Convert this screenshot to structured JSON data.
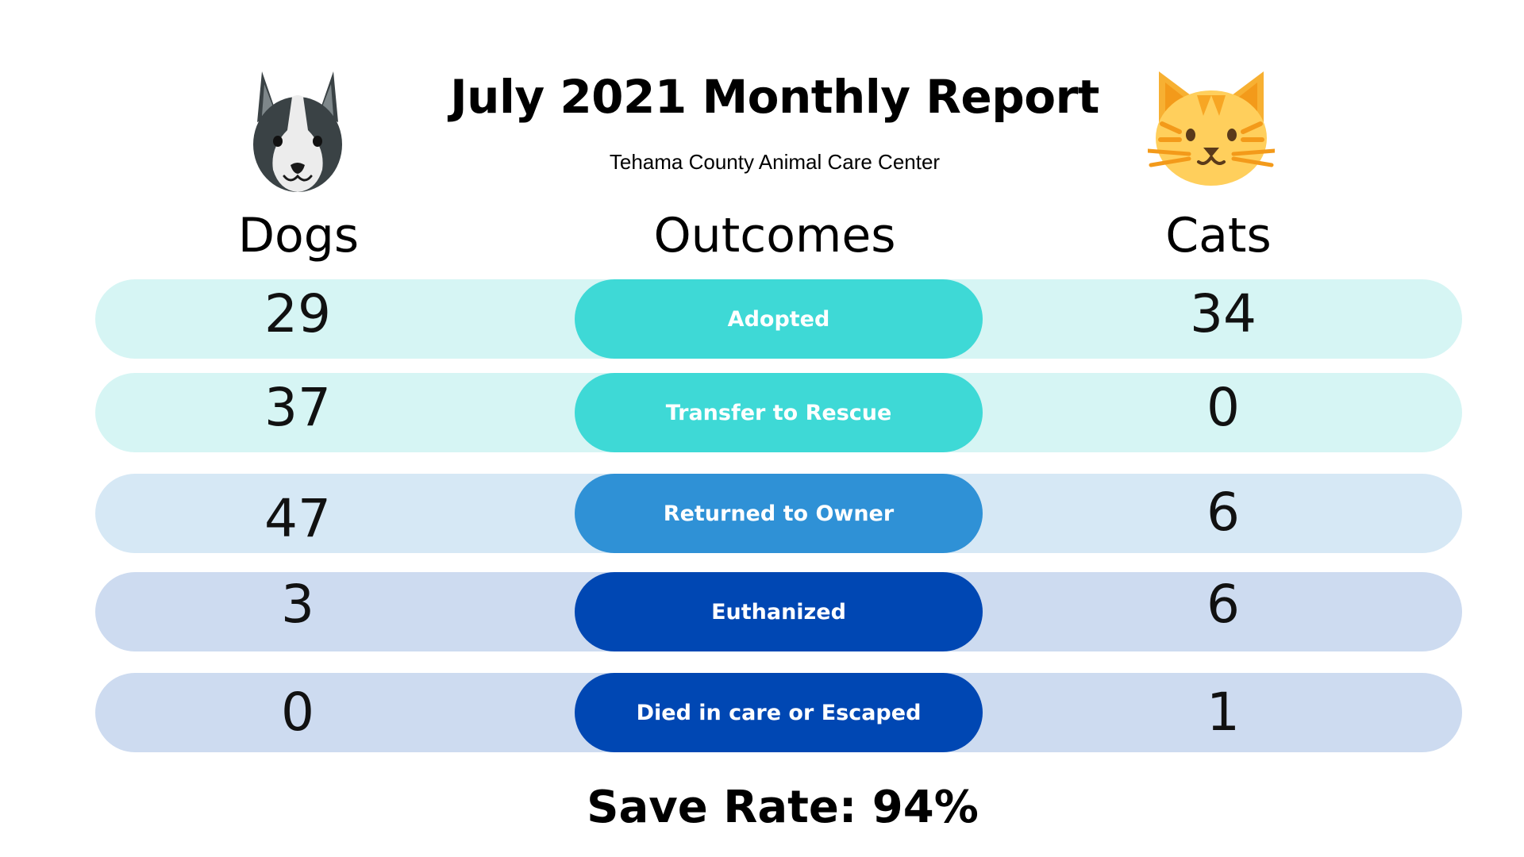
{
  "header": {
    "title": "July 2021 Monthly Report",
    "subtitle": "Tehama County Animal Care Center"
  },
  "columns": {
    "dogs": "Dogs",
    "outcomes": "Outcomes",
    "cats": "Cats"
  },
  "icons": {
    "dog": "dog-face-icon",
    "cat": "cat-face-icon"
  },
  "rows": [
    {
      "outcome": "Adopted",
      "dogs": "29",
      "cats": "34",
      "row_color": "#d6f5f4",
      "pill_color": "#3ed9d6"
    },
    {
      "outcome": "Transfer to Rescue",
      "dogs": "37",
      "cats": "0",
      "row_color": "#d6f5f4",
      "pill_color": "#3ed9d6"
    },
    {
      "outcome": "Returned to Owner",
      "dogs": "47",
      "cats": "6",
      "row_color": "#d6e8f5",
      "pill_color": "#2f91d6"
    },
    {
      "outcome": "Euthanized",
      "dogs": "3",
      "cats": "6",
      "row_color": "#cddbf0",
      "pill_color": "#0047b3"
    },
    {
      "outcome": "Died in care or Escaped",
      "dogs": "0",
      "cats": "1",
      "row_color": "#cddbf0",
      "pill_color": "#0047b3"
    }
  ],
  "save_rate": "Save Rate: 94%"
}
